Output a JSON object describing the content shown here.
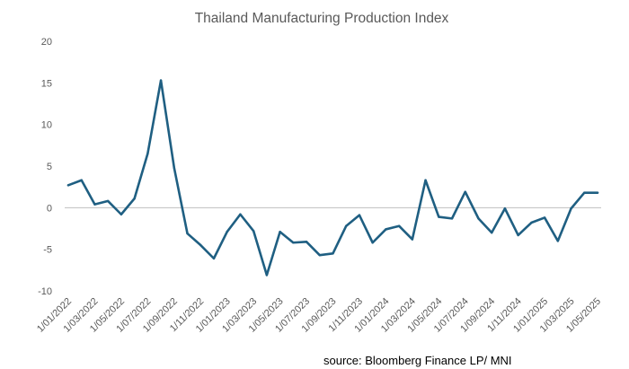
{
  "chart_data": {
    "type": "line",
    "title": "Thailand Manufacturing Production Index",
    "xlabel": "",
    "ylabel": "",
    "ylim": [
      -10,
      20
    ],
    "yticks": [
      -10,
      -5,
      0,
      5,
      10,
      15,
      20
    ],
    "ytick_labels": [
      "-10",
      "-5",
      "0",
      "5",
      "10",
      "15",
      "20"
    ],
    "grid": false,
    "legend": "none",
    "x": [
      "1/01/2022",
      "1/02/2022",
      "1/03/2022",
      "1/04/2022",
      "1/05/2022",
      "1/06/2022",
      "1/07/2022",
      "1/08/2022",
      "1/09/2022",
      "1/10/2022",
      "1/11/2022",
      "1/12/2022",
      "1/01/2023",
      "1/02/2023",
      "1/03/2023",
      "1/04/2023",
      "1/05/2023",
      "1/06/2023",
      "1/07/2023",
      "1/08/2023",
      "1/09/2023",
      "1/10/2023",
      "1/11/2023",
      "1/12/2023",
      "1/01/2024",
      "1/02/2024",
      "1/03/2024",
      "1/04/2024",
      "1/05/2024",
      "1/06/2024",
      "1/07/2024",
      "1/08/2024",
      "1/09/2024",
      "1/10/2024",
      "1/11/2024",
      "1/12/2024",
      "1/01/2025",
      "1/02/2025",
      "1/03/2025",
      "1/04/2025",
      "1/05/2025"
    ],
    "x_tick_labels": [
      "1/01/2022",
      "1/03/2022",
      "1/05/2022",
      "1/07/2022",
      "1/09/2022",
      "1/11/2022",
      "1/01/2023",
      "1/03/2023",
      "1/05/2023",
      "1/07/2023",
      "1/09/2023",
      "1/11/2023",
      "1/01/2024",
      "1/03/2024",
      "1/05/2024",
      "1/07/2024",
      "1/09/2024",
      "1/11/2024",
      "1/01/2025",
      "1/03/2025",
      "1/05/2025"
    ],
    "series": [
      {
        "name": "Thailand Manufacturing Production Index",
        "color": "#1f5f82",
        "values": [
          2.7,
          3.3,
          0.4,
          0.8,
          -0.8,
          1.1,
          6.5,
          15.3,
          4.8,
          -3.1,
          -4.5,
          -6.1,
          -2.9,
          -0.8,
          -2.8,
          -8.1,
          -2.9,
          -4.2,
          -4.1,
          -5.7,
          -5.5,
          -2.2,
          -0.9,
          -4.2,
          -2.6,
          -2.2,
          -3.8,
          3.3,
          -1.1,
          -1.3,
          1.9,
          -1.3,
          -3.0,
          -0.1,
          -3.3,
          -1.8,
          -1.2,
          -4.0,
          -0.1,
          1.8,
          1.8
        ]
      }
    ]
  },
  "source": "source: Bloomberg Finance LP/ MNI",
  "colors": {
    "line": "#1f5f82",
    "axis": "#bfbfbf",
    "text": "#595959"
  }
}
